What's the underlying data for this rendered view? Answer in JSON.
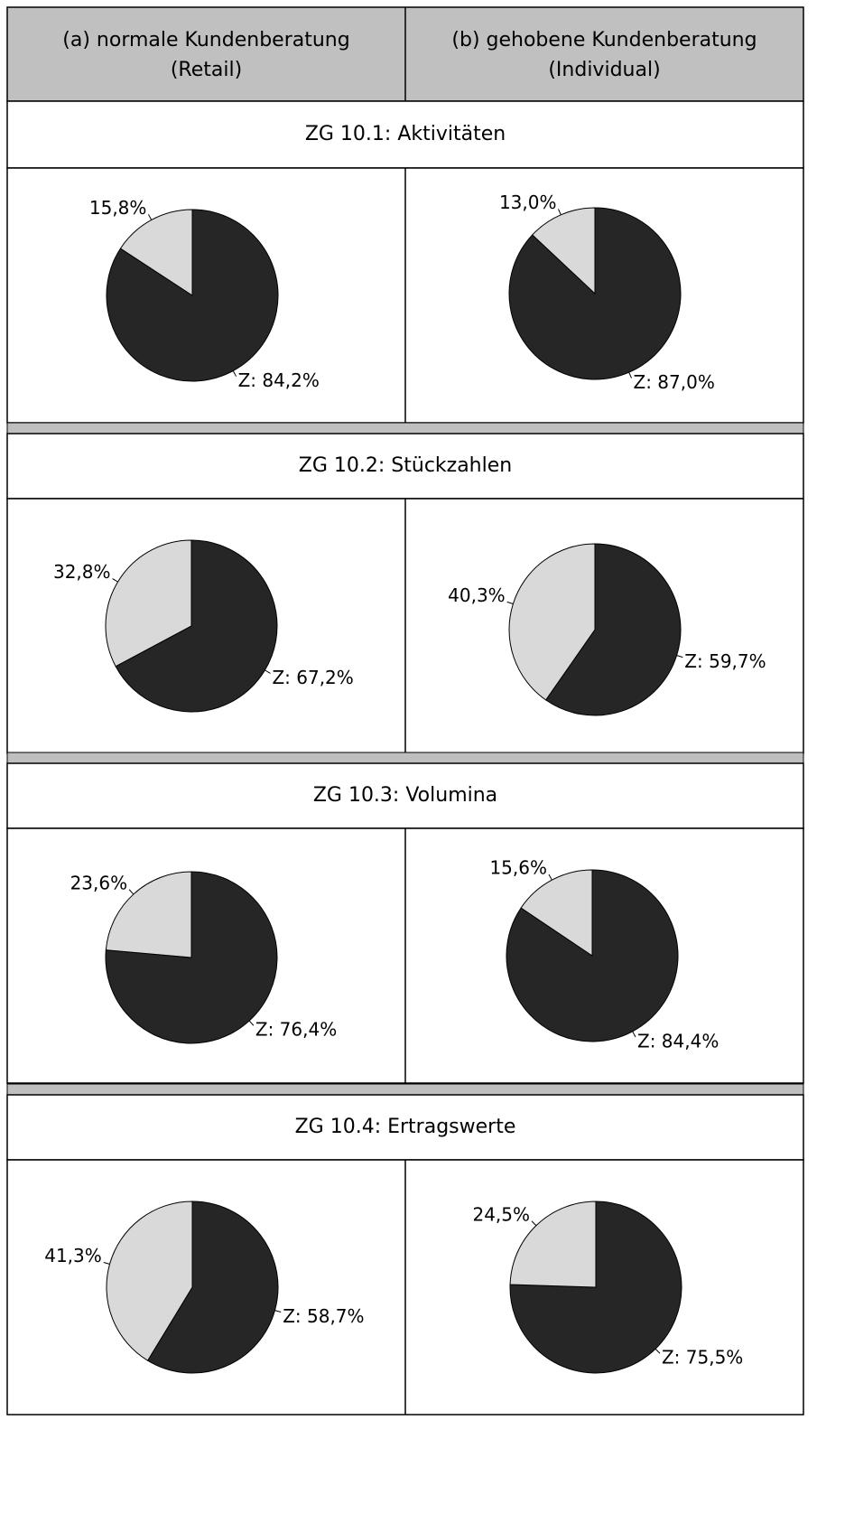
{
  "columns": [
    [
      "(a) normale Kundenberatung",
      "(Retail)"
    ],
    [
      "(b) gehobene Kundenberatung",
      "(Individual)"
    ]
  ],
  "sections": [
    "ZG 10.1: Aktivitäten",
    "ZG 10.2: Stückzahlen",
    "ZG 10.3: Volumina",
    "ZG 10.4: Ertragswerte"
  ],
  "chart_data": [
    {
      "type": "pie",
      "values": [
        15.8,
        84.2
      ],
      "value_labels": [
        "15,8%",
        "Z: 84,2%"
      ],
      "colors": [
        "#d9d9d9",
        "#262626"
      ]
    },
    {
      "type": "pie",
      "values": [
        13.0,
        87.0
      ],
      "value_labels": [
        "13,0%",
        "Z: 87,0%"
      ],
      "colors": [
        "#d9d9d9",
        "#262626"
      ]
    },
    {
      "type": "pie",
      "values": [
        32.8,
        67.2
      ],
      "value_labels": [
        "32,8%",
        "Z: 67,2%"
      ],
      "colors": [
        "#d9d9d9",
        "#262626"
      ]
    },
    {
      "type": "pie",
      "values": [
        40.3,
        59.7
      ],
      "value_labels": [
        "40,3%",
        "Z: 59,7%"
      ],
      "colors": [
        "#d9d9d9",
        "#262626"
      ]
    },
    {
      "type": "pie",
      "values": [
        23.6,
        76.4
      ],
      "value_labels": [
        "23,6%",
        "Z: 76,4%"
      ],
      "colors": [
        "#d9d9d9",
        "#262626"
      ]
    },
    {
      "type": "pie",
      "values": [
        15.6,
        84.4
      ],
      "value_labels": [
        "15,6%",
        "Z: 84,4%"
      ],
      "colors": [
        "#d9d9d9",
        "#262626"
      ]
    },
    {
      "type": "pie",
      "values": [
        41.3,
        58.7
      ],
      "value_labels": [
        "41,3%",
        "Z: 58,7%"
      ],
      "colors": [
        "#d9d9d9",
        "#262626"
      ]
    },
    {
      "type": "pie",
      "values": [
        24.5,
        75.5
      ],
      "value_labels": [
        "24,5%",
        "Z: 75,5%"
      ],
      "colors": [
        "#d9d9d9",
        "#262626"
      ]
    }
  ]
}
